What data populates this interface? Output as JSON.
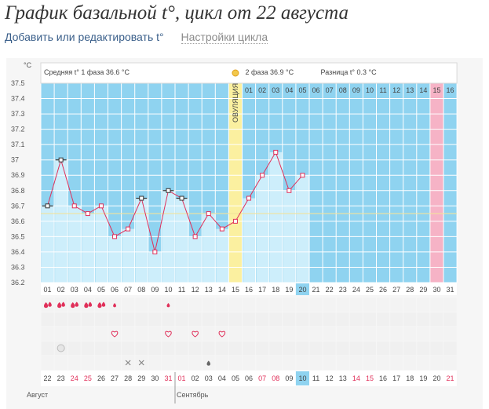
{
  "page": {
    "title": "График базальной t°, цикл от 22 августа",
    "add_link": "Добавить или редактировать t°",
    "settings_link": "Настройки цикла"
  },
  "colors": {
    "sky": "#8fd3f0",
    "pale": "#cdeefb",
    "grid": "#ffffff",
    "line": "#e0305a",
    "ovulation": "#fbf0a0",
    "menstruation_future": "#f6b3c6",
    "dot_white": "#ffffff",
    "dot_dark": "#333333",
    "weekend": "#e0305a",
    "weekday": "#444444",
    "today": "#8fd3f0",
    "threshold": "#f2e39b"
  },
  "header": {
    "unit": "°C",
    "phase1": "Средняя t° 1 фаза 36.6 °C",
    "phase2": "2 фаза 36.9 °C",
    "difference": "Разница t° 0.3 °C"
  },
  "chart_data": {
    "type": "line",
    "ylim": [
      36.2,
      37.5
    ],
    "yticks": [
      "37.5",
      "37.4",
      "37.3",
      "37.2",
      "37.1",
      "37",
      "36.9",
      "36.8",
      "36.7",
      "36.6",
      "36.5",
      "36.4",
      "36.3",
      "36.2"
    ],
    "cycle_days": [
      "01",
      "02",
      "03",
      "04",
      "05",
      "06",
      "07",
      "08",
      "09",
      "10",
      "11",
      "12",
      "13",
      "14",
      "15",
      "16",
      "17",
      "18",
      "19",
      "20",
      "21",
      "22",
      "23",
      "24",
      "25",
      "26",
      "27",
      "28",
      "29",
      "30",
      "31"
    ],
    "top_labels": [
      "01",
      "02",
      "03",
      "04",
      "05",
      "06",
      "07",
      "08",
      "09",
      "10",
      "11",
      "12",
      "13",
      "14",
      "ОВУЛЯЦИЯ",
      "01",
      "02",
      "03",
      "04",
      "05",
      "06",
      "07",
      "08",
      "09",
      "10",
      "11",
      "12",
      "13",
      "14",
      "15",
      "16"
    ],
    "temperatures": [
      36.7,
      37.0,
      36.7,
      36.65,
      36.7,
      36.5,
      36.55,
      36.75,
      36.4,
      36.8,
      36.75,
      36.5,
      36.65,
      36.55,
      36.6,
      36.75,
      36.9,
      37.05,
      36.8,
      36.9
    ],
    "open_circle_days": [
      1,
      2,
      8,
      10,
      11
    ],
    "ovulation_day": 15,
    "predicted_menstruation_day": 30,
    "today_day": 20,
    "threshold": 36.65,
    "dates": [
      "22",
      "23",
      "24",
      "25",
      "26",
      "27",
      "28",
      "29",
      "30",
      "31",
      "01",
      "02",
      "03",
      "04",
      "05",
      "06",
      "07",
      "08",
      "09",
      "10",
      "11",
      "12",
      "13",
      "14",
      "15",
      "16",
      "17",
      "18",
      "19",
      "20",
      "21"
    ],
    "weekend_days": [
      3,
      4,
      10,
      11,
      17,
      18,
      24,
      25,
      31
    ],
    "months": [
      "Август",
      "Сентябрь"
    ]
  },
  "symptoms": {
    "drops_large": [
      1,
      2,
      3,
      4,
      5
    ],
    "drops_small": [
      6,
      10
    ],
    "hearts": [
      6,
      10,
      12,
      14
    ],
    "cloud": [
      2
    ],
    "crosses": [
      7,
      8
    ],
    "small_drop_dark": [
      13
    ]
  }
}
